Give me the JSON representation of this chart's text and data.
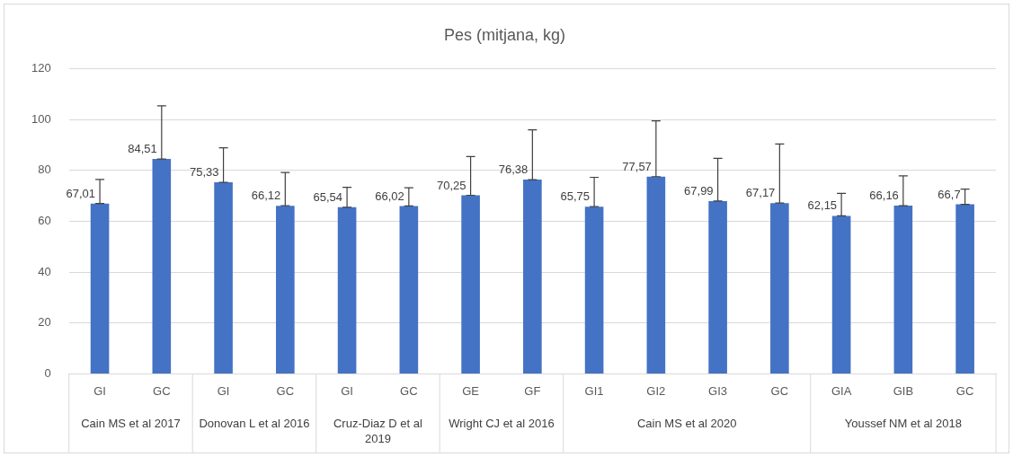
{
  "chart_data": {
    "type": "bar",
    "title": "Pes (mitjana, kg)",
    "categories": [
      "GI",
      "GC",
      "GI",
      "GC",
      "GI",
      "GC",
      "GE",
      "GF",
      "GI1",
      "GI2",
      "GI3",
      "GC",
      "GIA",
      "GIB",
      "GC"
    ],
    "series": [
      {
        "color": "#4472c4",
        "values": [
          67.01,
          84.51,
          75.33,
          66.12,
          65.54,
          66.02,
          70.25,
          76.38,
          65.75,
          77.57,
          67.99,
          67.17,
          62.15,
          66.16,
          66.7
        ],
        "value_labels": [
          "67,01",
          "84,51",
          "75,33",
          "66,12",
          "65,54",
          "66,02",
          "70,25",
          "76,38",
          "65,75",
          "77,57",
          "67,99",
          "67,17",
          "62,15",
          "66,16",
          "66,7"
        ],
        "errors": [
          [
            67.01,
            76.5
          ],
          [
            84.51,
            105.4
          ],
          [
            75.33,
            88.9
          ],
          [
            66.12,
            79.2
          ],
          [
            65.54,
            73.4
          ],
          [
            66.02,
            73.2
          ],
          [
            70.25,
            85.5
          ],
          [
            76.38,
            96
          ],
          [
            65.75,
            77.3
          ],
          [
            77.57,
            99.5
          ],
          [
            67.99,
            84.8
          ],
          [
            67.17,
            90.4
          ],
          [
            62.15,
            71
          ],
          [
            66.16,
            77.9
          ],
          [
            66.7,
            72.7
          ]
        ]
      }
    ],
    "annotations": [
      "Cain MS et al 2017",
      "Donovan L et al 2016",
      "Cruz-Diaz D et al 2019",
      "Wright CJ et al 2016",
      "Cain MS et al 2020",
      "Youssef NM et al 2018"
    ],
    "ylim": [
      0,
      120
    ],
    "yticks": [
      0,
      20,
      40,
      60,
      80,
      100,
      120
    ],
    "grid": "y",
    "legend": false
  }
}
